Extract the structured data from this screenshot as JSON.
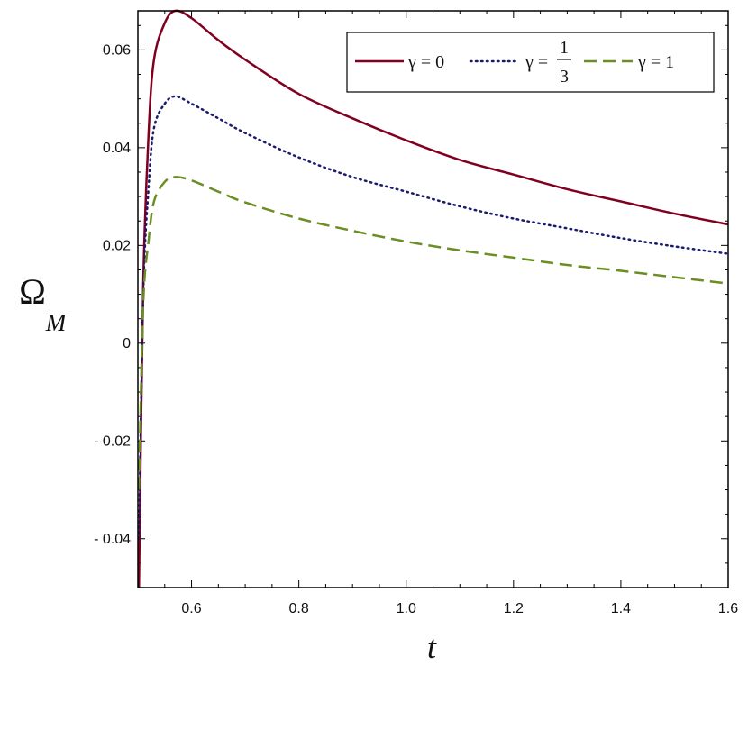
{
  "chart_data": {
    "type": "line",
    "xlabel": "t",
    "ylabel": {
      "main": "Ω",
      "sub": "M"
    },
    "xlim": [
      0.5,
      1.6
    ],
    "ylim": [
      -0.05,
      0.068
    ],
    "xticks": [
      0.6,
      0.8,
      1.0,
      1.2,
      1.4,
      1.6
    ],
    "xtick_labels": [
      "0.6",
      "0.8",
      "1.0",
      "1.2",
      "1.4",
      "1.6"
    ],
    "yticks": [
      -0.04,
      -0.02,
      0,
      0.02,
      0.04,
      0.06
    ],
    "ytick_labels": [
      "- 0.04",
      "- 0.02",
      "0",
      "0.02",
      "0.04",
      "0.06"
    ],
    "legend_position": "top-right",
    "series": [
      {
        "name": "γ = 0",
        "legend_prefix": "γ = ",
        "legend_value": "0",
        "style": "solid",
        "color": "#800020",
        "x": [
          0.502,
          0.51,
          0.52,
          0.53,
          0.55,
          0.57,
          0.6,
          0.65,
          0.7,
          0.8,
          0.9,
          1.0,
          1.1,
          1.2,
          1.3,
          1.4,
          1.5,
          1.6
        ],
        "y": [
          -0.05,
          0.012,
          0.043,
          0.058,
          0.0655,
          0.068,
          0.0665,
          0.062,
          0.058,
          0.051,
          0.046,
          0.0415,
          0.0375,
          0.0345,
          0.0315,
          0.029,
          0.0265,
          0.0243
        ]
      },
      {
        "name": "γ = 1/3",
        "legend_prefix": "γ = ",
        "legend_frac_num": "1",
        "legend_frac_den": "3",
        "style": "dotted",
        "color": "#1a1a6e",
        "x": [
          0.502,
          0.51,
          0.52,
          0.53,
          0.55,
          0.57,
          0.6,
          0.65,
          0.7,
          0.8,
          0.9,
          1.0,
          1.1,
          1.2,
          1.3,
          1.4,
          1.5,
          1.6
        ],
        "y": [
          -0.04,
          0.01,
          0.032,
          0.044,
          0.049,
          0.0505,
          0.049,
          0.046,
          0.043,
          0.038,
          0.034,
          0.031,
          0.028,
          0.0255,
          0.0235,
          0.0215,
          0.0198,
          0.0183
        ]
      },
      {
        "name": "γ = 1",
        "legend_prefix": "γ = ",
        "legend_value": "1",
        "style": "dashed",
        "color": "#6b8e23",
        "x": [
          0.502,
          0.51,
          0.52,
          0.53,
          0.55,
          0.57,
          0.6,
          0.65,
          0.7,
          0.8,
          0.9,
          1.0,
          1.1,
          1.2,
          1.3,
          1.4,
          1.5,
          1.6
        ],
        "y": [
          -0.03,
          0.008,
          0.021,
          0.029,
          0.033,
          0.034,
          0.0333,
          0.031,
          0.0288,
          0.0255,
          0.023,
          0.0208,
          0.019,
          0.0175,
          0.016,
          0.0148,
          0.0135,
          0.0122
        ]
      }
    ]
  }
}
